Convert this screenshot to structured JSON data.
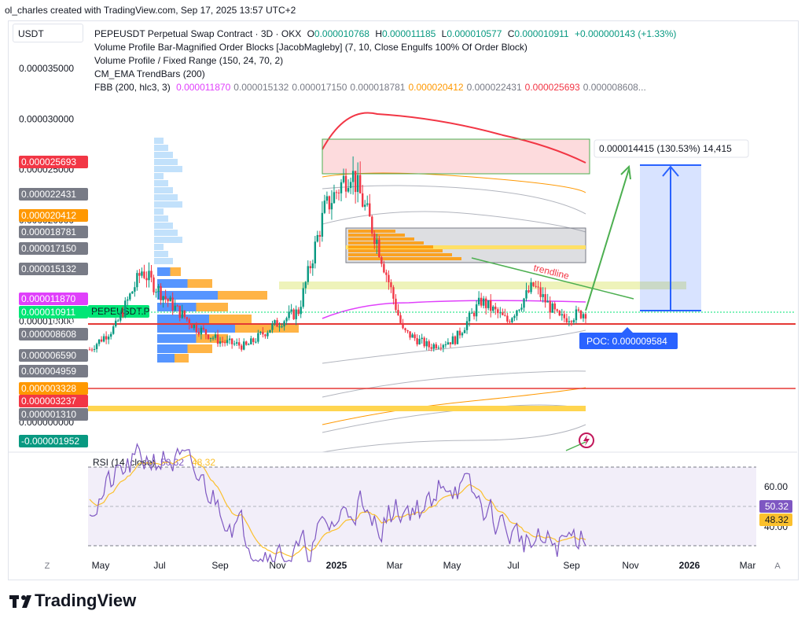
{
  "header": {
    "credit": "ol_charles created with TradingView.com, Sep 17, 2025 13:57 UTC+2"
  },
  "brand": {
    "name": "TradingView"
  },
  "currency_label": "USDT",
  "legend": {
    "title": "PEPEUSDT Perpetual Swap Contract · 3D · OKX",
    "o_label": "O",
    "o": "0.000010768",
    "h_label": "H",
    "h": "0.000011185",
    "l_label": "L",
    "l": "0.000010577",
    "c_label": "C",
    "c": "0.000010911",
    "change": "+0.000000143 (+1.33%)",
    "line2": "Volume Profile Bar-Magnified Order Blocks [JacobMagleby] (7, 10, Close Engulfs 100% Of Order Block)",
    "line3": "Volume Profile / Fixed Range (150, 24, 70, 2)",
    "line4": "CM_EMA TrendBars (200)",
    "fbb_label": "FBB (200, hlc3, 3)",
    "fbb_values": [
      {
        "v": "0.000011870",
        "color": "#e040fb"
      },
      {
        "v": "0.000015132",
        "color": "#787b86"
      },
      {
        "v": "0.000017150",
        "color": "#787b86"
      },
      {
        "v": "0.000018781",
        "color": "#787b86"
      },
      {
        "v": "0.000020412",
        "color": "#ff9800"
      },
      {
        "v": "0.000022431",
        "color": "#787b86"
      },
      {
        "v": "0.000025693",
        "color": "#f23645"
      },
      {
        "v": "0.000008608...",
        "color": "#787b86"
      }
    ]
  },
  "annotations": {
    "measure": "0.000014415 (130.53%) 14,415",
    "trendline": "trendline",
    "poc": "POC: 0.000009584",
    "symbol_tag": "PEPEUSDT.P",
    "countdown": "1d 13h"
  },
  "chart_data": [
    {
      "type": "candlestick",
      "title": "PEPEUSDT Perpetual Swap Contract · 3D · OKX",
      "x_ticks": [
        "May",
        "Jul",
        "Sep",
        "Nov",
        "2025",
        "Mar",
        "May",
        "Jul",
        "Sep",
        "Nov",
        "2026",
        "Mar"
      ],
      "y_ticks": [
        "0.000035000",
        "0.000030000",
        "0.000025000",
        "0.000020000",
        "0.000015000",
        "0.000010000",
        "0.000005000",
        "0.000000000"
      ],
      "ylim": [
        -2.5e-06,
        3.7e-05
      ],
      "price_labels": [
        {
          "v": "0.000025693",
          "color": "#f23645"
        },
        {
          "v": "0.000022431",
          "color": "#787b86"
        },
        {
          "v": "0.000020412",
          "color": "#ff9800"
        },
        {
          "v": "0.000018781",
          "color": "#787b86"
        },
        {
          "v": "0.000017150",
          "color": "#787b86"
        },
        {
          "v": "0.000015132",
          "color": "#787b86"
        },
        {
          "v": "0.000011870",
          "color": "#e040fb"
        },
        {
          "v": "0.000010911",
          "color": "#00e676"
        },
        {
          "v": "0.000008608",
          "color": "#787b86"
        },
        {
          "v": "0.000006590",
          "color": "#787b86"
        },
        {
          "v": "0.000004959",
          "color": "#787b86"
        },
        {
          "v": "0.000003328",
          "color": "#ff9800"
        },
        {
          "v": "0.000003237",
          "color": "#f23645"
        },
        {
          "v": "0.000001310",
          "color": "#787b86"
        },
        {
          "v": "-0.000001952",
          "color": "#089981"
        }
      ],
      "close_path": [
        [
          "2024-04",
          7.2e-06
        ],
        [
          "2024-05",
          9.5e-06
        ],
        [
          "2024-05b",
          1.5e-05
        ],
        [
          "2024-06",
          1.2e-05
        ],
        [
          "2024-07",
          9.5e-06
        ],
        [
          "2024-08",
          8e-06
        ],
        [
          "2024-09",
          7.5e-06
        ],
        [
          "2024-10",
          9.5e-06
        ],
        [
          "2024-11",
          1.1e-05
        ],
        [
          "2024-11b",
          2.1e-05
        ],
        [
          "2024-12",
          2.5e-05
        ],
        [
          "2025-01",
          1.8e-05
        ],
        [
          "2025-02",
          9e-06
        ],
        [
          "2025-03",
          7.5e-06
        ],
        [
          "2025-04",
          8.2e-06
        ],
        [
          "2025-05",
          1.2e-05
        ],
        [
          "2025-06",
          1e-05
        ],
        [
          "2025-07",
          1.35e-05
        ],
        [
          "2025-08",
          1.02e-05
        ],
        [
          "2025-09",
          1.09e-05
        ]
      ],
      "measure_range": {
        "from": 1.1e-05,
        "to": 2.54e-05,
        "change": "0.000014415 (130.53%) 14,415"
      },
      "horizontal_levels": [
        9.5e-06,
        3.3e-06
      ],
      "grid": false,
      "legend_position": "top-left"
    },
    {
      "type": "line",
      "title": "RSI (14, close)",
      "series": [
        {
          "name": "RSI",
          "last": "50.32",
          "color": "#7e57c2"
        },
        {
          "name": "MA",
          "last": "48.32",
          "color": "#fbc02d"
        }
      ],
      "y_ticks": [
        "60.00",
        "40.00"
      ],
      "bands": [
        70,
        30
      ]
    }
  ],
  "rsi_labels": {
    "title": "RSI (14, close)",
    "v1": "50.32",
    "v2": "48.32"
  },
  "axis_corner": {
    "left": "Z",
    "right": "A"
  }
}
